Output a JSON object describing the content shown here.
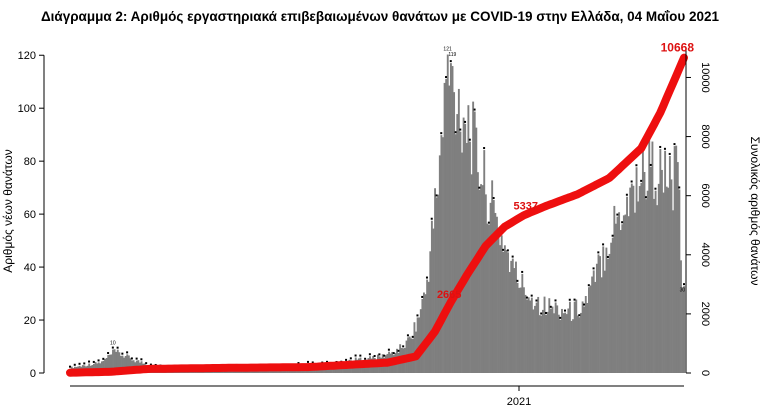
{
  "chart_data": {
    "type": "bar+line",
    "title": "Διάγραμμα 2: Αριθμός εργαστηριακά επιβεβαιωμένων θανάτων με COVID-19 στην Ελλάδα, 04 Μαΐου 2021",
    "ylabel_left": "Αριθμός νέων θανάτων",
    "ylabel_right": "Συνολικός αριθμός θανάτων",
    "x_tick_labels": [
      "2021"
    ],
    "ylim_left": [
      0,
      125
    ],
    "yticks_left": [
      0,
      20,
      40,
      60,
      80,
      100,
      120
    ],
    "ylim_right": [
      0,
      11200
    ],
    "yticks_right": [
      0,
      2000,
      4000,
      6000,
      8000,
      10000
    ],
    "series": [
      {
        "kind": "bar",
        "description": "daily new deaths (weekly levels, interpolated day by day)",
        "anchors": [
          [
            0,
            2
          ],
          [
            10,
            3
          ],
          [
            20,
            4
          ],
          [
            28,
            8
          ],
          [
            40,
            5
          ],
          [
            55,
            2
          ],
          [
            70,
            1
          ],
          [
            90,
            1
          ],
          [
            105,
            2
          ],
          [
            120,
            2
          ],
          [
            135,
            2
          ],
          [
            150,
            3
          ],
          [
            165,
            3
          ],
          [
            180,
            5
          ],
          [
            195,
            6
          ],
          [
            205,
            8
          ],
          [
            212,
            11
          ],
          [
            218,
            18
          ],
          [
            224,
            30
          ],
          [
            230,
            62
          ],
          [
            234,
            85
          ],
          [
            238,
            115
          ],
          [
            241,
            108
          ],
          [
            246,
            100
          ],
          [
            251,
            95
          ],
          [
            256,
            82
          ],
          [
            262,
            70
          ],
          [
            268,
            58
          ],
          [
            274,
            48
          ],
          [
            280,
            38
          ],
          [
            286,
            32
          ],
          [
            292,
            28
          ],
          [
            300,
            25
          ],
          [
            308,
            24
          ],
          [
            316,
            23
          ],
          [
            324,
            26
          ],
          [
            330,
            34
          ],
          [
            336,
            45
          ],
          [
            342,
            55
          ],
          [
            348,
            62
          ],
          [
            354,
            68
          ],
          [
            360,
            75
          ],
          [
            366,
            78
          ],
          [
            372,
            74
          ],
          [
            378,
            72
          ],
          [
            383,
            74
          ],
          [
            386,
            35
          ],
          [
            387,
            28
          ]
        ],
        "peak_labels": [
          {
            "x": 238,
            "value": 121
          },
          {
            "x": 241,
            "value": 119
          },
          {
            "x": 27,
            "value": 10
          },
          {
            "x": 386,
            "value": 30
          }
        ]
      },
      {
        "kind": "line",
        "name": "Συνολικός αριθμός θανάτων",
        "axis": "right",
        "color": "#ee0f0f",
        "anchors": [
          [
            0,
            10
          ],
          [
            25,
            40
          ],
          [
            50,
            140
          ],
          [
            100,
            175
          ],
          [
            150,
            200
          ],
          [
            200,
            350
          ],
          [
            218,
            560
          ],
          [
            230,
            1400
          ],
          [
            240,
            2400
          ],
          [
            250,
            3300
          ],
          [
            262,
            4300
          ],
          [
            274,
            4950
          ],
          [
            286,
            5337
          ],
          [
            300,
            5650
          ],
          [
            320,
            6050
          ],
          [
            340,
            6600
          ],
          [
            360,
            7600
          ],
          [
            372,
            8800
          ],
          [
            387,
            10668
          ]
        ]
      }
    ],
    "annotations": [
      "10668",
      "5337",
      "2665"
    ]
  }
}
